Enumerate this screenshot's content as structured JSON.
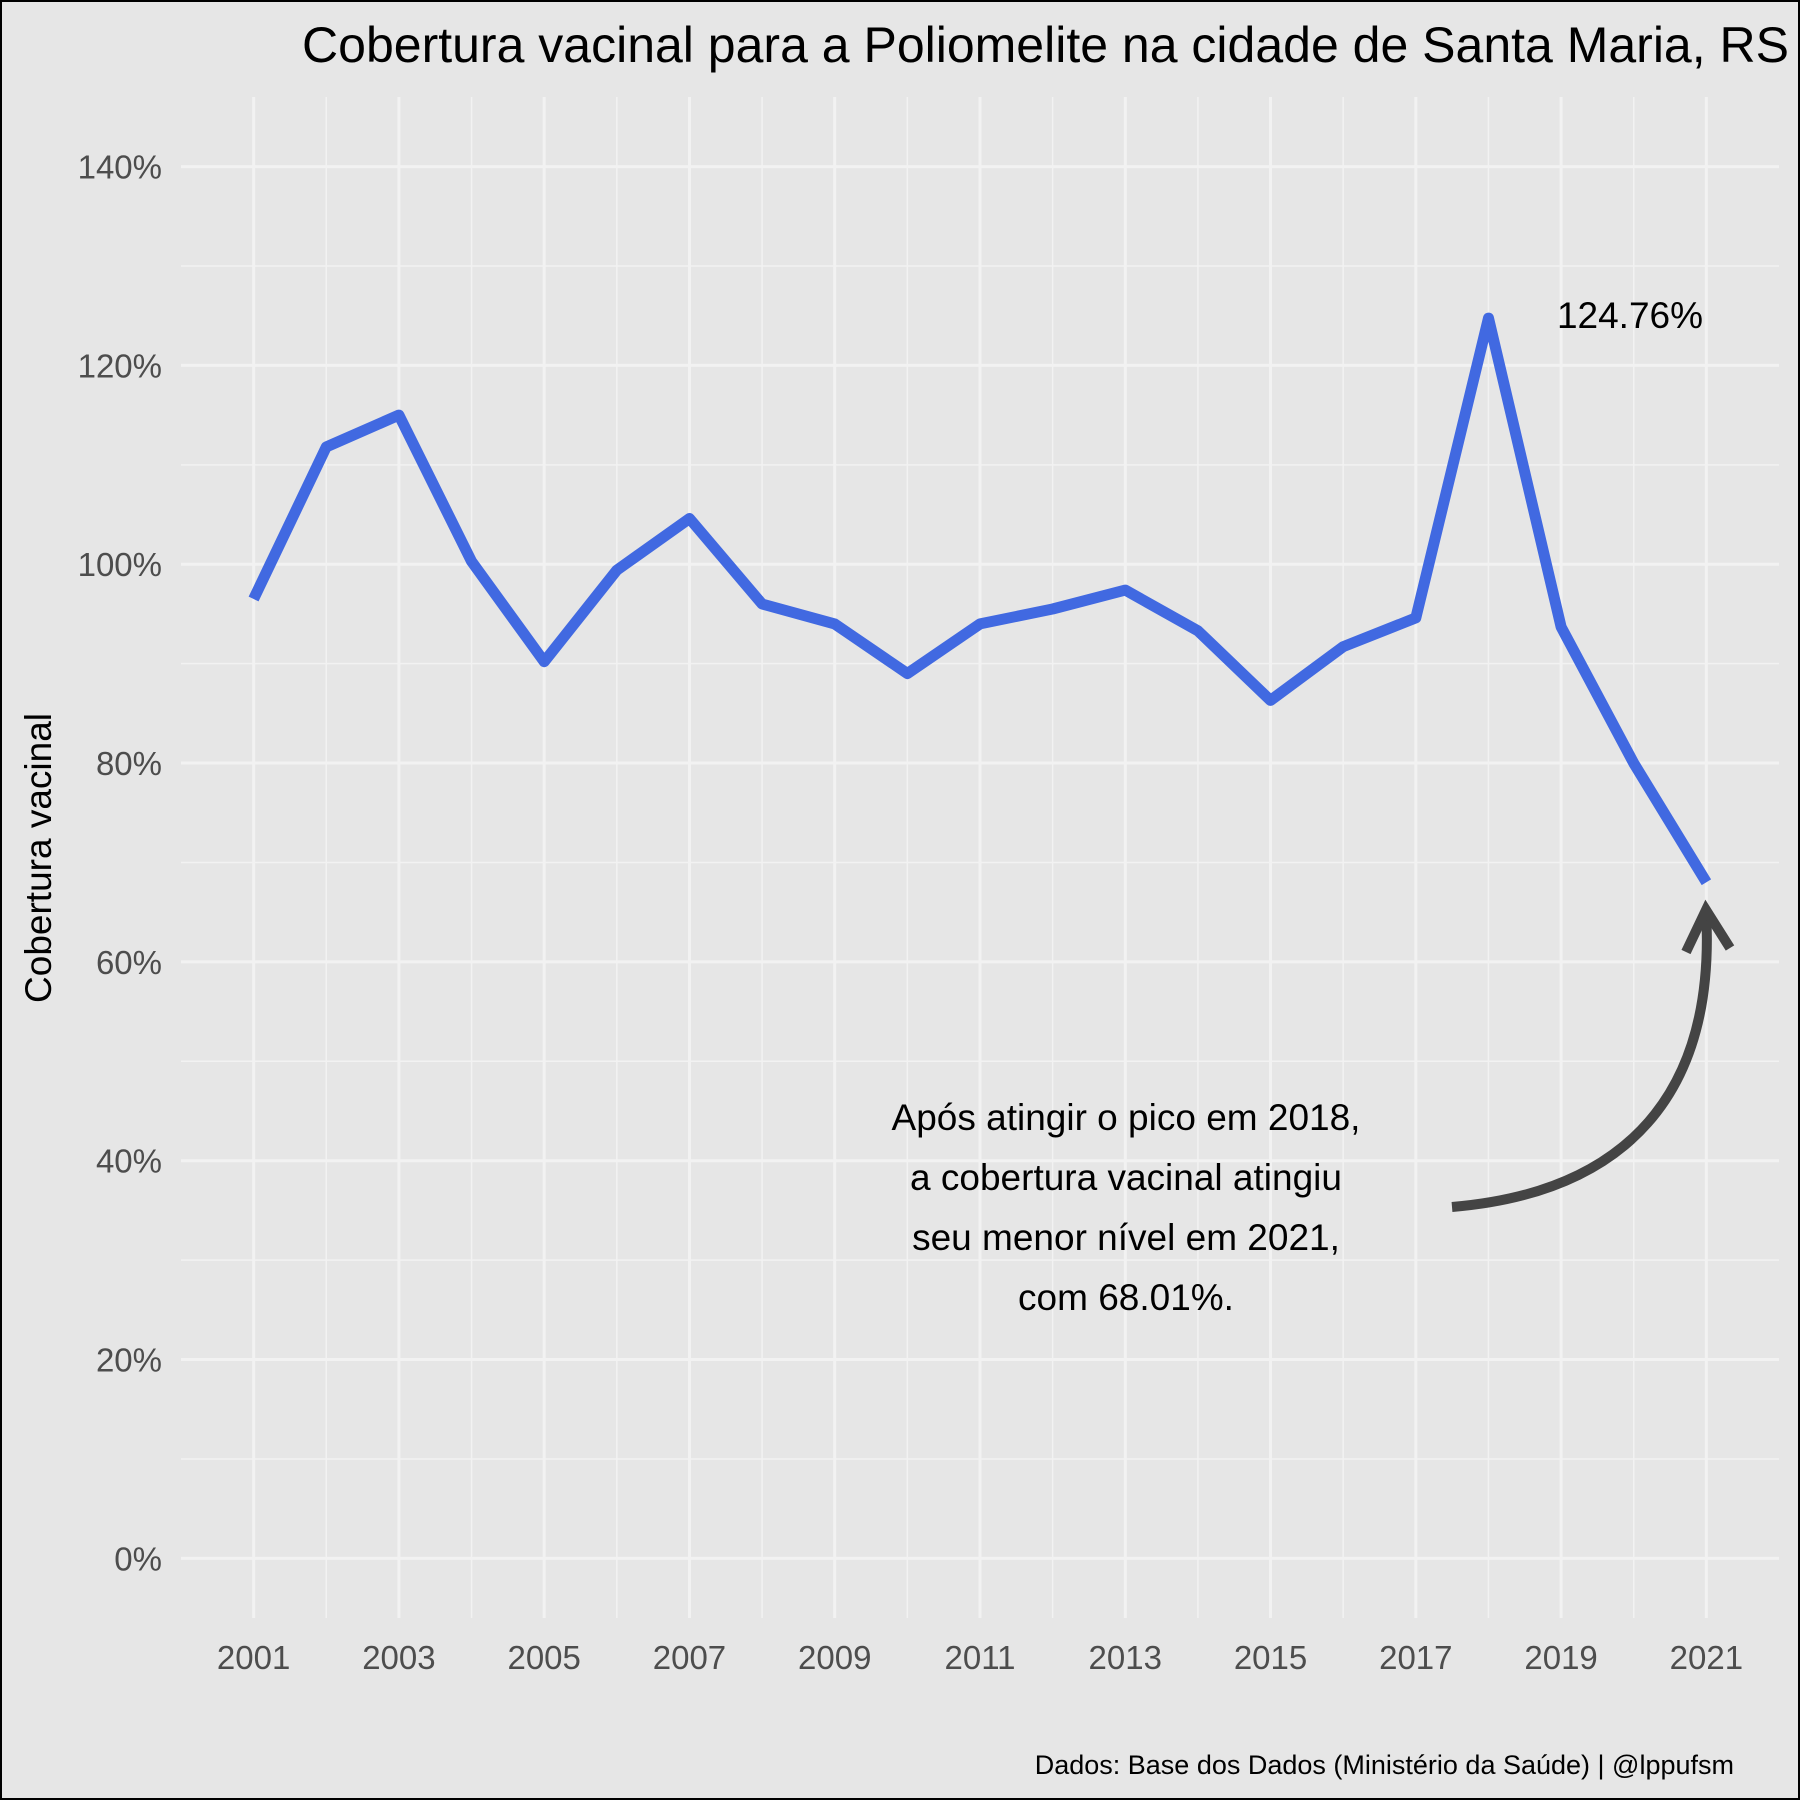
{
  "colors": {
    "background": "#E6E6E6",
    "grid": "#F2F2F2",
    "line": "#4169E1",
    "arrow": "#444444",
    "border": "#000000",
    "tick_text": "#4D4D4D",
    "text": "#000000"
  },
  "chart_data": {
    "type": "line",
    "title": "Cobertura vacinal para a Poliomelite na cidade de Santa Maria, RS",
    "xlabel": "",
    "ylabel": "Cobertura vacinal",
    "caption": "Dados: Base dos Dados (Ministério da Saúde) | @lppufsm",
    "x": [
      2001,
      2002,
      2003,
      2004,
      2005,
      2006,
      2007,
      2008,
      2009,
      2010,
      2011,
      2012,
      2013,
      2014,
      2015,
      2016,
      2017,
      2018,
      2019,
      2020,
      2021
    ],
    "series": [
      {
        "values": [
          96.5,
          111.8,
          115.0,
          100.3,
          90.2,
          99.4,
          104.6,
          96.0,
          94.0,
          89.0,
          94.0,
          95.5,
          97.4,
          93.3,
          86.3,
          91.7,
          94.6,
          124.76,
          93.7,
          80.0,
          68.01
        ]
      }
    ],
    "xlim": [
      2000,
      2022
    ],
    "ylim": [
      -6,
      147
    ],
    "xticks": [
      2001,
      2003,
      2005,
      2007,
      2009,
      2011,
      2013,
      2015,
      2017,
      2019,
      2021
    ],
    "yticks": [
      0,
      20,
      40,
      60,
      80,
      100,
      120,
      140
    ],
    "ytick_labels": [
      "0%",
      "20%",
      "40%",
      "60%",
      "80%",
      "100%",
      "120%",
      "140%"
    ],
    "grid": true,
    "annotations": {
      "peak_label": "124.76%",
      "note_lines": [
        "Após atingir o pico em 2018,",
        "a cobertura vacinal atingiu",
        "seu menor nível em 2021,",
        "com 68.01%."
      ]
    }
  }
}
